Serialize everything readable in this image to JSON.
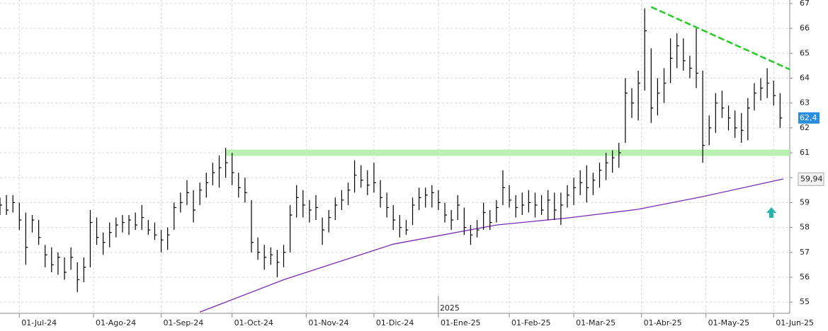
{
  "chart_data": {
    "type": "ohlc",
    "color": "#000000",
    "xlim": [
      -6,
      239
    ],
    "ylim": [
      54.55,
      67.14
    ],
    "grid": true,
    "yticks": [
      55,
      56,
      57,
      58,
      59,
      60,
      61,
      62,
      63,
      64,
      65,
      66,
      67
    ],
    "xticks": [
      {
        "value": 0,
        "label": "01-Jul-24"
      },
      {
        "value": 23,
        "label": "01-Ago-24"
      },
      {
        "value": 44,
        "label": "01-Sep-24"
      },
      {
        "value": 66,
        "label": "01-Oct-24"
      },
      {
        "value": 89,
        "label": "01-Nov-24"
      },
      {
        "value": 110,
        "label": "01-Dic-24"
      },
      {
        "value": 130,
        "label": "01-Ene-25"
      },
      {
        "value": 152,
        "label": "01-Feb-25"
      },
      {
        "value": 172,
        "label": "01-Mar-25"
      },
      {
        "value": 193,
        "label": "01-Abr-25"
      },
      {
        "value": 213,
        "label": "01-May-25"
      },
      {
        "value": 234,
        "label": "01-Jun-25"
      }
    ],
    "year_marker": {
      "x": 130,
      "label": "2025"
    },
    "x": [
      -6,
      -4,
      -2,
      0,
      2,
      4,
      6,
      8,
      10,
      12,
      14,
      16,
      18,
      20,
      22,
      24,
      26,
      28,
      30,
      32,
      34,
      36,
      38,
      40,
      42,
      44,
      46,
      48,
      50,
      52,
      54,
      56,
      58,
      60,
      62,
      64,
      66,
      68,
      70,
      72,
      74,
      76,
      78,
      80,
      82,
      84,
      86,
      88,
      90,
      92,
      94,
      96,
      98,
      100,
      102,
      104,
      106,
      108,
      110,
      112,
      114,
      116,
      118,
      120,
      122,
      124,
      126,
      128,
      130,
      132,
      134,
      136,
      138,
      140,
      142,
      144,
      146,
      148,
      150,
      152,
      154,
      156,
      158,
      160,
      162,
      164,
      166,
      168,
      170,
      172,
      174,
      176,
      178,
      180,
      182,
      184,
      186,
      188,
      190,
      192,
      194,
      196,
      198,
      200,
      202,
      204,
      206,
      208,
      210,
      212,
      214,
      216,
      218,
      220,
      222,
      224,
      226,
      228,
      230,
      232,
      234,
      236
    ],
    "high": [
      59.2,
      59.3,
      59.3,
      59.0,
      58.6,
      58.5,
      58.3,
      57.3,
      57.2,
      57.0,
      56.8,
      57.2,
      56.6,
      56.8,
      58.7,
      58.4,
      57.8,
      58.2,
      58.4,
      58.5,
      58.5,
      58.6,
      58.9,
      58.3,
      58.2,
      57.9,
      58.0,
      59.0,
      59.4,
      59.9,
      59.5,
      59.8,
      60.2,
      60.6,
      60.9,
      61.2,
      61.0,
      60.2,
      60.0,
      59.1,
      57.6,
      57.3,
      57.2,
      57.1,
      57.3,
      58.9,
      59.7,
      59.5,
      59.1,
      59.3,
      58.4,
      58.7,
      59.2,
      59.5,
      59.8,
      60.7,
      60.5,
      60.3,
      60.6,
      59.9,
      59.4,
      58.9,
      58.5,
      58.3,
      59.2,
      59.6,
      59.6,
      59.7,
      59.5,
      59.0,
      58.7,
      59.3,
      58.8,
      58.1,
      58.3,
      59.0,
      58.7,
      59.1,
      60.3,
      59.7,
      59.3,
      59.4,
      59.5,
      59.4,
      59.3,
      59.5,
      59.4,
      59.4,
      59.7,
      60.0,
      60.3,
      60.5,
      60.2,
      60.6,
      61.0,
      61.1,
      61.4,
      64.0,
      63.6,
      64.3,
      66.8,
      65.2,
      64.0,
      64.4,
      65.6,
      65.8,
      65.6,
      64.9,
      66.0,
      64.3,
      62.5,
      63.4,
      63.5,
      62.9,
      62.7,
      62.6,
      63.2,
      63.8,
      64.0,
      64.4,
      63.9,
      63.4
    ],
    "low": [
      58.5,
      58.5,
      58.6,
      57.9,
      56.5,
      57.8,
      57.3,
      56.4,
      56.2,
      56.1,
      55.9,
      56.3,
      55.4,
      55.8,
      56.4,
      57.3,
      56.9,
      57.2,
      57.6,
      57.8,
      57.7,
      57.9,
      57.9,
      57.7,
      57.5,
      57.0,
      57.1,
      57.9,
      58.6,
      58.9,
      58.2,
      58.9,
      59.2,
      59.7,
      59.6,
      60.0,
      59.7,
      59.2,
      59.0,
      57.0,
      56.7,
      56.3,
      56.5,
      56.0,
      56.4,
      57.0,
      58.4,
      58.4,
      58.2,
      58.3,
      57.3,
      57.8,
      58.3,
      58.7,
      58.9,
      59.4,
      59.6,
      59.3,
      59.4,
      58.8,
      58.4,
      57.9,
      57.6,
      57.7,
      58.1,
      58.7,
      58.8,
      58.8,
      58.7,
      58.2,
      57.9,
      58.3,
      57.7,
      57.3,
      57.6,
      57.9,
      57.9,
      58.2,
      58.9,
      58.8,
      58.4,
      58.5,
      58.6,
      58.4,
      58.5,
      58.3,
      58.3,
      58.1,
      58.8,
      58.9,
      59.3,
      59.0,
      59.3,
      59.6,
      59.9,
      60.2,
      60.4,
      61.4,
      62.4,
      62.3,
      63.5,
      62.2,
      62.5,
      63.0,
      63.8,
      64.4,
      64.3,
      64.0,
      63.6,
      60.6,
      61.3,
      61.8,
      62.4,
      61.9,
      61.6,
      61.4,
      61.5,
      62.7,
      63.1,
      63.2,
      62.9,
      62.0
    ],
    "close": [
      58.9,
      58.7,
      59.0,
      58.3,
      57.2,
      58.3,
      57.6,
      56.9,
      56.5,
      56.8,
      56.2,
      56.8,
      55.9,
      56.4,
      58.2,
      57.6,
      57.4,
      57.8,
      58.1,
      58.2,
      58.3,
      58.1,
      58.4,
      57.9,
      57.7,
      57.5,
      57.7,
      58.8,
      59.0,
      59.4,
      58.7,
      59.5,
      59.8,
      60.2,
      60.4,
      60.6,
      60.2,
      59.6,
      59.4,
      57.4,
      57.0,
      56.8,
      56.9,
      56.6,
      57.0,
      58.5,
      59.2,
      58.9,
      58.7,
      58.8,
      57.9,
      58.4,
      58.9,
      59.1,
      59.5,
      60.1,
      59.9,
      59.7,
      59.8,
      59.2,
      58.8,
      58.3,
      58.0,
      57.9,
      58.9,
      59.2,
      59.3,
      59.4,
      59.0,
      58.5,
      58.3,
      58.9,
      58.0,
      57.7,
      57.9,
      58.6,
      58.2,
      58.8,
      59.6,
      59.1,
      58.8,
      58.9,
      59.0,
      58.9,
      58.7,
      59.1,
      58.7,
      58.9,
      59.3,
      59.6,
      59.8,
      59.6,
      59.9,
      60.3,
      60.6,
      60.8,
      61.0,
      63.4,
      63.0,
      63.8,
      65.9,
      62.8,
      63.4,
      63.8,
      64.8,
      65.3,
      64.7,
      64.4,
      64.2,
      61.3,
      62.0,
      63.0,
      62.8,
      62.4,
      62.0,
      61.9,
      62.8,
      63.4,
      63.6,
      63.8,
      63.3,
      62.4
    ],
    "moving_average": {
      "color": "#7a2bb5",
      "x": [
        56,
        82,
        116,
        148,
        170,
        192,
        212,
        237
      ],
      "values": [
        54.6,
        55.9,
        57.33,
        58.1,
        58.38,
        58.73,
        59.24,
        59.95
      ]
    },
    "support_level": {
      "value": 61,
      "from_x": 64,
      "color": "#b9f2b0"
    },
    "trendline": {
      "color": "#22cc22",
      "x": [
        196,
        239
      ],
      "values": [
        66.86,
        64.35
      ]
    },
    "last_price": {
      "value": 62.4,
      "label": "62,4",
      "color": "#2a8ee0"
    },
    "ma_last": {
      "value": 59.94,
      "label": "59,94"
    }
  }
}
